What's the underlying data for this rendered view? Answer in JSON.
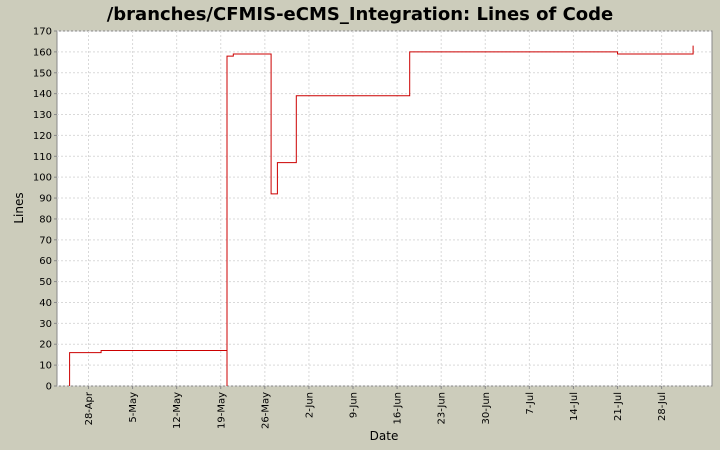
{
  "colors": {
    "page_background": "#CCCCBB",
    "plot_background": "#FFFFFF",
    "gridline": "#D9D9D9",
    "series_line": "#CC0000",
    "axis": "#888888"
  },
  "chart_data": {
    "type": "line",
    "style": "step",
    "title": "/branches/CFMIS-eCMS_Integration: Lines of Code",
    "xlabel": "Date",
    "ylabel": "Lines",
    "grid": true,
    "legend": "none",
    "x_ticks": [
      "28-Apr",
      "5-May",
      "12-May",
      "19-May",
      "26-May",
      "2-Jun",
      "9-Jun",
      "16-Jun",
      "23-Jun",
      "30-Jun",
      "7-Jul",
      "14-Jul",
      "21-Jul",
      "28-Jul"
    ],
    "y_ticks": [
      0,
      10,
      20,
      30,
      40,
      50,
      60,
      70,
      80,
      90,
      100,
      110,
      120,
      130,
      140,
      150,
      160,
      170
    ],
    "ylim": [
      0,
      170
    ],
    "xlim": [
      "23-Apr",
      "5-Aug"
    ],
    "series": [
      {
        "x": [
          "25-Apr",
          "25-Apr",
          "30-Apr",
          "20-May",
          "20-May",
          "20-May",
          "21-May",
          "27-May",
          "28-May",
          "31-May",
          "18-Jun",
          "21-Jul",
          "2-Aug",
          "2-Aug"
        ],
        "values": [
          0,
          16,
          17,
          0,
          44,
          158,
          159,
          92,
          107,
          139,
          160,
          159,
          163,
          163
        ]
      }
    ]
  }
}
